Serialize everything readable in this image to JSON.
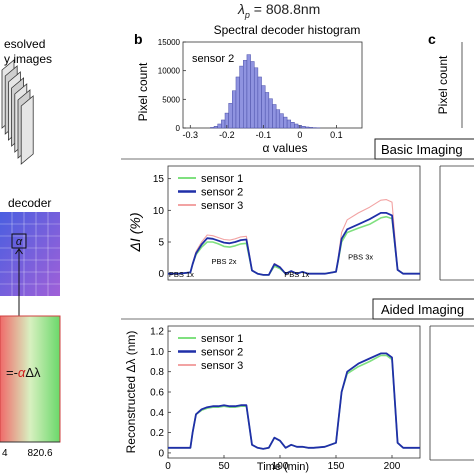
{
  "header": {
    "lambda_symbol": "λ",
    "lambda_sub": "p",
    "lambda_value": " = 808.8nm"
  },
  "left_column": {
    "stack_label_line1": "esolved",
    "stack_label_line2": "y images",
    "decoder_label": "decoder",
    "alpha_symbol": "α",
    "formula_eq": "=-",
    "formula_alpha": "α",
    "formula_rest": "Δλ",
    "tick_left": "4",
    "tick_right": "820.6"
  },
  "panel_labels": {
    "b": "b",
    "c": "c"
  },
  "section_labels": {
    "basic": "Basic Imaging",
    "aided": "Aided Imaging"
  },
  "colors": {
    "sensor1": "#7fe07f",
    "sensor2": "#1f2fa8",
    "sensor3": "#f2a3a3",
    "hist_bar": "#8f93e0",
    "hist_edge": "#4a4fa8"
  },
  "chart_data": [
    {
      "type": "bar",
      "title": "Spectral decoder histogram",
      "annotation": "sensor 2",
      "xlabel": "α values",
      "ylabel": "Pixel count",
      "xlim": [
        -0.32,
        0.17
      ],
      "ylim": [
        0,
        15000
      ],
      "xticks": [
        "-0.3",
        "-0.2",
        "-0.1",
        "0",
        "0.1"
      ],
      "xtick_values": [
        -0.3,
        -0.2,
        -0.1,
        0,
        0.1
      ],
      "yticks": [
        "0",
        "5000",
        "10000",
        "15000"
      ],
      "ytick_values": [
        0,
        5000,
        10000,
        15000
      ],
      "bin_width": 0.01,
      "x": [
        -0.24,
        -0.23,
        -0.22,
        -0.21,
        -0.2,
        -0.19,
        -0.18,
        -0.17,
        -0.16,
        -0.15,
        -0.14,
        -0.13,
        -0.12,
        -0.11,
        -0.1,
        -0.09,
        -0.08,
        -0.07,
        -0.06,
        -0.05,
        -0.04,
        -0.03,
        -0.02,
        -0.01,
        0,
        0.01,
        0.02,
        0.03,
        0.04,
        0.05
      ],
      "values": [
        100,
        300,
        700,
        1400,
        2600,
        4300,
        6500,
        8900,
        10800,
        11800,
        12800,
        11600,
        10500,
        8900,
        7400,
        6200,
        5100,
        4100,
        3200,
        2500,
        1900,
        1400,
        1000,
        700,
        450,
        300,
        180,
        110,
        60,
        30
      ]
    },
    {
      "type": "line",
      "section": "Basic Imaging",
      "ylabel": "ΔI (%)",
      "ylim": [
        -1,
        17
      ],
      "yticks": [
        "0",
        "5",
        "10",
        "15"
      ],
      "ytick_values": [
        0,
        5,
        10,
        15
      ],
      "xlim": [
        0,
        225
      ],
      "legend": "top-left",
      "annotations": [
        {
          "text": "PBS 1x",
          "x": 12,
          "y": -0.5
        },
        {
          "text": "PBS 2x",
          "x": 50,
          "y": 1.5
        },
        {
          "text": "PBS 1x",
          "x": 115,
          "y": -0.5
        },
        {
          "text": "PBS 3x",
          "x": 172,
          "y": 2.2
        }
      ],
      "x": [
        0,
        10,
        20,
        22,
        25,
        30,
        35,
        40,
        45,
        50,
        55,
        60,
        65,
        70,
        75,
        80,
        85,
        90,
        95,
        100,
        105,
        110,
        115,
        120,
        125,
        130,
        140,
        150,
        152,
        155,
        160,
        170,
        180,
        190,
        195,
        200,
        205,
        210,
        215,
        220,
        225
      ],
      "series": [
        {
          "name": "sensor 1",
          "values": [
            0,
            0,
            0.2,
            1.5,
            3,
            4.2,
            5,
            5,
            4.7,
            4.3,
            4.2,
            4.4,
            4.7,
            4.8,
            0.5,
            0,
            -0.2,
            -0.2,
            1.2,
            0.8,
            0,
            0.4,
            0,
            0.3,
            0,
            0,
            0,
            0.3,
            2,
            5,
            6.5,
            7.2,
            7.8,
            8.8,
            9,
            8.7,
            0.6,
            0,
            0,
            0,
            0
          ]
        },
        {
          "name": "sensor 2",
          "values": [
            0,
            0,
            0.2,
            1.5,
            3.2,
            4.6,
            5.6,
            5.5,
            5.2,
            4.9,
            4.8,
            5,
            5.3,
            5.4,
            0.5,
            0,
            -0.2,
            -0.2,
            1.5,
            1,
            0,
            0.4,
            0,
            0.3,
            0,
            0,
            0,
            0.3,
            2.2,
            5.5,
            7,
            7.8,
            8.6,
            9.6,
            9.6,
            9.2,
            0.6,
            0,
            0,
            0,
            0
          ]
        },
        {
          "name": "sensor 3",
          "values": [
            0,
            0,
            0.2,
            1.6,
            3.5,
            5,
            6.1,
            6,
            5.7,
            5.4,
            5.3,
            5.5,
            5.8,
            5.9,
            0.6,
            0,
            -0.2,
            -0.2,
            1.6,
            1.1,
            0,
            0.4,
            0,
            0.3,
            0,
            0,
            0,
            0.3,
            2.5,
            6.5,
            8.5,
            9.6,
            10.5,
            11.6,
            11.7,
            11.3,
            0.7,
            0,
            0,
            0,
            0
          ]
        }
      ]
    },
    {
      "type": "line",
      "section": "Aided Imaging",
      "xlabel": "Time (min)",
      "ylabel": "Reconstructed Δλ (nm)",
      "ylim": [
        -0.05,
        1.25
      ],
      "yticks": [
        "0",
        "0.2",
        "0.4",
        "0.6",
        "0.8",
        "1.0",
        "1.2"
      ],
      "ytick_values": [
        0,
        0.2,
        0.4,
        0.6,
        0.8,
        1.0,
        1.2
      ],
      "xlim": [
        0,
        225
      ],
      "xticks": [
        "0",
        "50",
        "100",
        "150",
        "200"
      ],
      "xtick_values": [
        0,
        50,
        100,
        150,
        200
      ],
      "legend": "top-left",
      "x": [
        0,
        10,
        20,
        22,
        25,
        30,
        35,
        40,
        45,
        50,
        55,
        60,
        65,
        70,
        75,
        80,
        85,
        90,
        95,
        100,
        105,
        110,
        115,
        120,
        125,
        130,
        140,
        150,
        152,
        155,
        160,
        170,
        180,
        190,
        195,
        200,
        205,
        210,
        215,
        220,
        225
      ],
      "series": [
        {
          "name": "sensor 1",
          "values": [
            0.05,
            0.05,
            0.05,
            0.2,
            0.38,
            0.42,
            0.44,
            0.45,
            0.45,
            0.46,
            0.45,
            0.45,
            0.46,
            0.46,
            0.08,
            0.05,
            0.04,
            0.05,
            0.15,
            0.12,
            0.05,
            0.08,
            0.06,
            0.06,
            0.05,
            0.05,
            0.06,
            0.1,
            0.3,
            0.6,
            0.78,
            0.85,
            0.9,
            0.96,
            0.96,
            0.92,
            0.1,
            0.05,
            0.05,
            0.05,
            0.05
          ]
        },
        {
          "name": "sensor 2",
          "values": [
            0.05,
            0.05,
            0.05,
            0.2,
            0.38,
            0.43,
            0.45,
            0.46,
            0.46,
            0.47,
            0.46,
            0.46,
            0.47,
            0.47,
            0.08,
            0.05,
            0.04,
            0.05,
            0.15,
            0.12,
            0.05,
            0.08,
            0.06,
            0.06,
            0.05,
            0.05,
            0.06,
            0.1,
            0.3,
            0.6,
            0.8,
            0.88,
            0.93,
            0.98,
            0.98,
            0.94,
            0.1,
            0.05,
            0.05,
            0.05,
            0.05
          ]
        },
        {
          "name": "sensor 3",
          "values": [
            0.05,
            0.05,
            0.05,
            0.2,
            0.38,
            0.43,
            0.45,
            0.46,
            0.46,
            0.47,
            0.46,
            0.46,
            0.47,
            0.47,
            0.08,
            0.05,
            0.04,
            0.05,
            0.15,
            0.12,
            0.05,
            0.08,
            0.06,
            0.06,
            0.05,
            0.05,
            0.06,
            0.1,
            0.3,
            0.6,
            0.8,
            0.88,
            0.93,
            0.98,
            0.98,
            0.94,
            0.1,
            0.05,
            0.05,
            0.05,
            0.05
          ]
        }
      ]
    }
  ]
}
